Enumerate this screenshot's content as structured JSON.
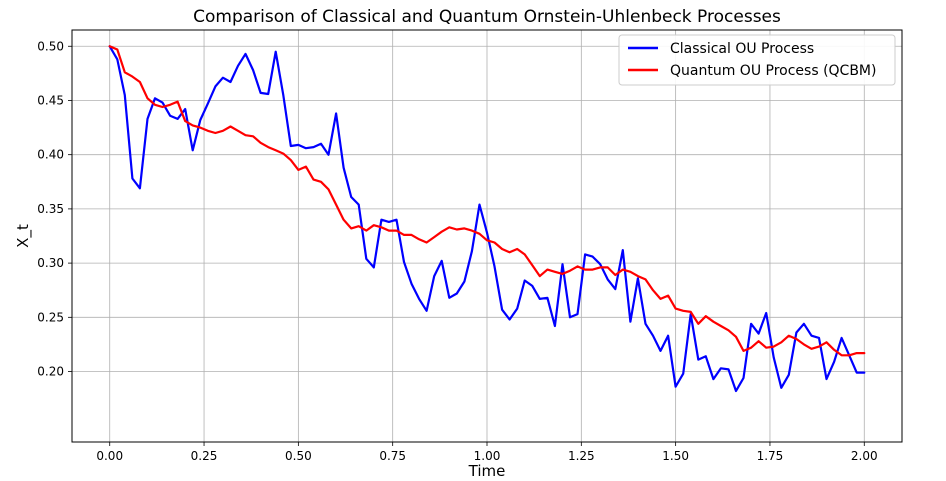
{
  "chart_data": {
    "type": "line",
    "title": "Comparison of Classical and Quantum Ornstein-Uhlenbeck Processes",
    "xlabel": "Time",
    "ylabel": "X_t",
    "xlim": [
      -0.1,
      2.1
    ],
    "ylim": [
      0.135,
      0.515
    ],
    "xticks": [
      "0.00",
      "0.25",
      "0.50",
      "0.75",
      "1.00",
      "1.25",
      "1.50",
      "1.75",
      "2.00"
    ],
    "yticks": [
      "0.20",
      "0.25",
      "0.30",
      "0.35",
      "0.40",
      "0.45",
      "0.50"
    ],
    "grid": true,
    "legend_position": "top-right",
    "series": [
      {
        "name": "Classical OU Process",
        "color": "#0000ff",
        "x": [
          0,
          0.02,
          0.04,
          0.06,
          0.08,
          0.1,
          0.12,
          0.14,
          0.16,
          0.18,
          0.2,
          0.22,
          0.24,
          0.26,
          0.28,
          0.3,
          0.32,
          0.34,
          0.36,
          0.38,
          0.4,
          0.42,
          0.44,
          0.46,
          0.48,
          0.5,
          0.52,
          0.54,
          0.56,
          0.58,
          0.6,
          0.62,
          0.64,
          0.66,
          0.68,
          0.7,
          0.72,
          0.74,
          0.76,
          0.78,
          0.8,
          0.82,
          0.84,
          0.86,
          0.88,
          0.9,
          0.92,
          0.94,
          0.96,
          0.98,
          1.0,
          1.02,
          1.04,
          1.06,
          1.08,
          1.1,
          1.12,
          1.14,
          1.16,
          1.18,
          1.2,
          1.22,
          1.24,
          1.26,
          1.28,
          1.3,
          1.32,
          1.34,
          1.36,
          1.38,
          1.4,
          1.42,
          1.44,
          1.46,
          1.48,
          1.5,
          1.52,
          1.54,
          1.56,
          1.58,
          1.6,
          1.62,
          1.64,
          1.66,
          1.68,
          1.7,
          1.72,
          1.74,
          1.76,
          1.78,
          1.8,
          1.82,
          1.84,
          1.86,
          1.88,
          1.9,
          1.92,
          1.94,
          1.96,
          1.98,
          2.0
        ],
        "values": [
          0.5,
          0.488,
          0.455,
          0.378,
          0.369,
          0.433,
          0.452,
          0.448,
          0.436,
          0.433,
          0.442,
          0.404,
          0.432,
          0.447,
          0.463,
          0.471,
          0.467,
          0.482,
          0.493,
          0.478,
          0.457,
          0.456,
          0.495,
          0.455,
          0.408,
          0.409,
          0.406,
          0.407,
          0.41,
          0.4,
          0.438,
          0.388,
          0.361,
          0.354,
          0.304,
          0.296,
          0.34,
          0.338,
          0.34,
          0.301,
          0.281,
          0.267,
          0.256,
          0.288,
          0.302,
          0.268,
          0.272,
          0.283,
          0.311,
          0.354,
          0.328,
          0.297,
          0.257,
          0.248,
          0.258,
          0.284,
          0.279,
          0.267,
          0.268,
          0.242,
          0.299,
          0.25,
          0.253,
          0.308,
          0.306,
          0.299,
          0.285,
          0.276,
          0.312,
          0.246,
          0.286,
          0.244,
          0.233,
          0.219,
          0.233,
          0.186,
          0.198,
          0.253,
          0.211,
          0.214,
          0.193,
          0.203,
          0.202,
          0.182,
          0.194,
          0.244,
          0.235,
          0.254,
          0.213,
          0.185,
          0.197,
          0.236,
          0.244,
          0.233,
          0.231,
          0.193,
          0.209,
          0.231,
          0.215,
          0.199,
          0.199
        ]
      },
      {
        "name": "Quantum OU Process (QCBM)",
        "color": "#ff0000",
        "x": [
          0,
          0.02,
          0.04,
          0.06,
          0.08,
          0.1,
          0.12,
          0.14,
          0.16,
          0.18,
          0.2,
          0.22,
          0.24,
          0.26,
          0.28,
          0.3,
          0.32,
          0.34,
          0.36,
          0.38,
          0.4,
          0.42,
          0.44,
          0.46,
          0.48,
          0.5,
          0.52,
          0.54,
          0.56,
          0.58,
          0.6,
          0.62,
          0.64,
          0.66,
          0.68,
          0.7,
          0.72,
          0.74,
          0.76,
          0.78,
          0.8,
          0.82,
          0.84,
          0.86,
          0.88,
          0.9,
          0.92,
          0.94,
          0.96,
          0.98,
          1.0,
          1.02,
          1.04,
          1.06,
          1.08,
          1.1,
          1.12,
          1.14,
          1.16,
          1.18,
          1.2,
          1.22,
          1.24,
          1.26,
          1.28,
          1.3,
          1.32,
          1.34,
          1.36,
          1.38,
          1.4,
          1.42,
          1.44,
          1.46,
          1.48,
          1.5,
          1.52,
          1.54,
          1.56,
          1.58,
          1.6,
          1.62,
          1.64,
          1.66,
          1.68,
          1.7,
          1.72,
          1.74,
          1.76,
          1.78,
          1.8,
          1.82,
          1.84,
          1.86,
          1.88,
          1.9,
          1.92,
          1.94,
          1.96,
          1.98,
          2.0
        ],
        "values": [
          0.5,
          0.497,
          0.476,
          0.472,
          0.467,
          0.452,
          0.446,
          0.444,
          0.446,
          0.449,
          0.431,
          0.427,
          0.425,
          0.422,
          0.42,
          0.422,
          0.426,
          0.422,
          0.418,
          0.417,
          0.411,
          0.407,
          0.404,
          0.401,
          0.395,
          0.386,
          0.389,
          0.377,
          0.375,
          0.368,
          0.354,
          0.34,
          0.332,
          0.334,
          0.33,
          0.335,
          0.333,
          0.33,
          0.33,
          0.326,
          0.326,
          0.322,
          0.319,
          0.324,
          0.329,
          0.333,
          0.331,
          0.332,
          0.33,
          0.327,
          0.321,
          0.319,
          0.313,
          0.31,
          0.313,
          0.308,
          0.298,
          0.288,
          0.294,
          0.292,
          0.29,
          0.293,
          0.297,
          0.294,
          0.294,
          0.296,
          0.296,
          0.289,
          0.294,
          0.292,
          0.288,
          0.285,
          0.275,
          0.267,
          0.27,
          0.258,
          0.256,
          0.255,
          0.244,
          0.251,
          0.246,
          0.242,
          0.238,
          0.232,
          0.219,
          0.222,
          0.228,
          0.222,
          0.223,
          0.227,
          0.233,
          0.23,
          0.225,
          0.221,
          0.223,
          0.227,
          0.22,
          0.215,
          0.215,
          0.217,
          0.217
        ]
      }
    ]
  }
}
